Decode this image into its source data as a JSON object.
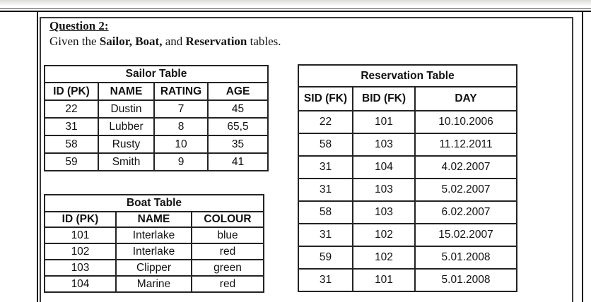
{
  "question": {
    "heading": "Question 2:",
    "intro_segments": [
      {
        "text": "Given the ",
        "bold": false
      },
      {
        "text": "Sailor, Boat,",
        "bold": true
      },
      {
        "text": " and ",
        "bold": false
      },
      {
        "text": "Reservation",
        "bold": true
      },
      {
        "text": " tables.",
        "bold": false
      }
    ]
  },
  "tables": {
    "sailor": {
      "title": "Sailor Table",
      "columns": [
        "ID (PK)",
        "NAME",
        "RATING",
        "AGE"
      ],
      "rows": [
        [
          "22",
          "Dustin",
          "7",
          "45"
        ],
        [
          "31",
          "Lubber",
          "8",
          "65,5"
        ],
        [
          "58",
          "Rusty",
          "10",
          "35"
        ],
        [
          "59",
          "Smith",
          "9",
          "41"
        ]
      ]
    },
    "boat": {
      "title": "Boat Table",
      "columns": [
        "ID (PK)",
        "NAME",
        "COLOUR"
      ],
      "rows": [
        [
          "101",
          "Interlake",
          "blue"
        ],
        [
          "102",
          "Interlake",
          "red"
        ],
        [
          "103",
          "Clipper",
          "green"
        ],
        [
          "104",
          "Marine",
          "red"
        ]
      ]
    },
    "reservation": {
      "title": "Reservation Table",
      "columns": [
        "SID (FK)",
        "BID (FK)",
        "DAY"
      ],
      "rows": [
        [
          "22",
          "101",
          "10.10.2006"
        ],
        [
          "58",
          "103",
          "11.12.2011"
        ],
        [
          "31",
          "104",
          "4.02.2007"
        ],
        [
          "31",
          "103",
          "5.02.2007"
        ],
        [
          "58",
          "103",
          "6.02.2007"
        ],
        [
          "31",
          "102",
          "15.02.2007"
        ],
        [
          "59",
          "102",
          "5.01.2008"
        ],
        [
          "31",
          "101",
          "5.01.2008"
        ]
      ]
    }
  },
  "colors": {
    "text": "#141414",
    "table_border": "#232323",
    "inner_frame_border": "#3a3a3a",
    "outer_frame_border": "#0a0a0a"
  }
}
